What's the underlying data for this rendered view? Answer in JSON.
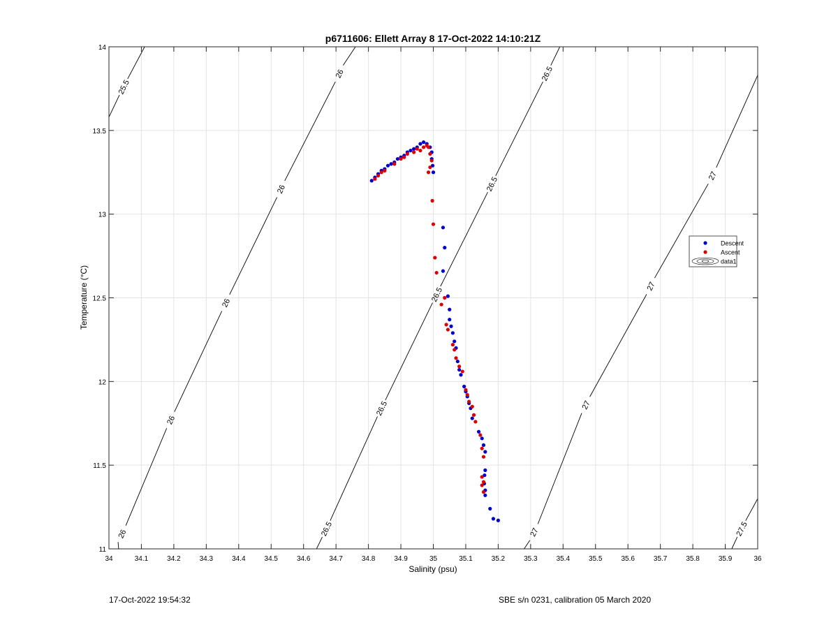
{
  "footer": {
    "left": "17-Oct-2022 19:54:32",
    "right": "SBE s/n 0231, calibration 05 March 2020"
  },
  "chart_data": {
    "type": "scatter",
    "title": "p6711606: Ellett Array 8 17-Oct-2022 14:10:21Z",
    "xlabel": "Salinity (psu)",
    "ylabel": "Temperature (°C)",
    "xlim": [
      34,
      36
    ],
    "ylim": [
      11,
      14
    ],
    "xticks": [
      34,
      34.1,
      34.2,
      34.3,
      34.4,
      34.5,
      34.6,
      34.7,
      34.8,
      34.9,
      35,
      35.1,
      35.2,
      35.3,
      35.4,
      35.5,
      35.6,
      35.7,
      35.8,
      35.9,
      36
    ],
    "xtick_labels": [
      "34",
      "34.1",
      "34.2",
      "34.3",
      "34.4",
      "34.5",
      "34.6",
      "34.7",
      "34.8",
      "34.9",
      "35",
      "35.1",
      "35.2",
      "35.3",
      "35.4",
      "35.5",
      "35.6",
      "35.7",
      "35.8",
      "35.9",
      "36"
    ],
    "yticks": [
      11,
      11.5,
      12,
      12.5,
      13,
      13.5,
      14
    ],
    "ytick_labels": [
      "11",
      "11.5",
      "12",
      "12.5",
      "13",
      "13.5",
      "14"
    ],
    "grid": true,
    "legend": {
      "location": "right",
      "entries": [
        {
          "name": "Descent",
          "color": "#0000cc",
          "marker": "dot"
        },
        {
          "name": "Ascent",
          "color": "#dd0000",
          "marker": "dot"
        },
        {
          "name": "data1",
          "color": "#000000",
          "marker": "contour"
        }
      ]
    },
    "series": [
      {
        "name": "Descent",
        "color": "#0000cc",
        "points": [
          [
            34.81,
            13.2
          ],
          [
            34.82,
            13.22
          ],
          [
            34.83,
            13.24
          ],
          [
            34.84,
            13.26
          ],
          [
            34.85,
            13.27
          ],
          [
            34.86,
            13.29
          ],
          [
            34.87,
            13.3
          ],
          [
            34.88,
            13.31
          ],
          [
            34.89,
            13.33
          ],
          [
            34.9,
            13.34
          ],
          [
            34.91,
            13.35
          ],
          [
            34.92,
            13.37
          ],
          [
            34.93,
            13.38
          ],
          [
            34.94,
            13.39
          ],
          [
            34.95,
            13.4
          ],
          [
            34.96,
            13.42
          ],
          [
            34.97,
            13.43
          ],
          [
            34.98,
            13.42
          ],
          [
            34.99,
            13.4
          ],
          [
            34.995,
            13.37
          ],
          [
            34.995,
            13.33
          ],
          [
            34.998,
            13.29
          ],
          [
            35.0,
            13.25
          ],
          [
            35.03,
            12.92
          ],
          [
            35.035,
            12.8
          ],
          [
            35.03,
            12.66
          ],
          [
            35.045,
            12.51
          ],
          [
            35.05,
            12.43
          ],
          [
            35.05,
            12.37
          ],
          [
            35.055,
            12.33
          ],
          [
            35.06,
            12.29
          ],
          [
            35.065,
            12.24
          ],
          [
            35.07,
            12.2
          ],
          [
            35.075,
            12.12
          ],
          [
            35.08,
            12.07
          ],
          [
            35.085,
            12.04
          ],
          [
            35.095,
            11.97
          ],
          [
            35.1,
            11.94
          ],
          [
            35.105,
            11.91
          ],
          [
            35.11,
            11.87
          ],
          [
            35.115,
            11.84
          ],
          [
            35.12,
            11.78
          ],
          [
            35.14,
            11.7
          ],
          [
            35.15,
            11.66
          ],
          [
            35.155,
            11.62
          ],
          [
            35.16,
            11.58
          ],
          [
            35.16,
            11.47
          ],
          [
            35.158,
            11.44
          ],
          [
            35.157,
            11.39
          ],
          [
            35.16,
            11.35
          ],
          [
            35.16,
            11.32
          ],
          [
            35.175,
            11.24
          ],
          [
            35.185,
            11.18
          ],
          [
            35.2,
            11.17
          ]
        ]
      },
      {
        "name": "Ascent",
        "color": "#dd0000",
        "points": [
          [
            34.82,
            13.21
          ],
          [
            34.83,
            13.23
          ],
          [
            34.84,
            13.25
          ],
          [
            34.85,
            13.26
          ],
          [
            34.88,
            13.3
          ],
          [
            34.9,
            13.33
          ],
          [
            34.91,
            13.34
          ],
          [
            34.92,
            13.36
          ],
          [
            34.94,
            13.37
          ],
          [
            34.95,
            13.39
          ],
          [
            34.96,
            13.38
          ],
          [
            34.97,
            13.4
          ],
          [
            34.98,
            13.41
          ],
          [
            34.985,
            13.4
          ],
          [
            34.99,
            13.36
          ],
          [
            34.995,
            13.32
          ],
          [
            34.99,
            13.28
          ],
          [
            34.985,
            13.25
          ],
          [
            34.997,
            13.08
          ],
          [
            35.0,
            12.94
          ],
          [
            35.005,
            12.74
          ],
          [
            35.01,
            12.65
          ],
          [
            35.025,
            12.46
          ],
          [
            35.035,
            12.5
          ],
          [
            35.04,
            12.34
          ],
          [
            35.045,
            12.31
          ],
          [
            35.06,
            12.22
          ],
          [
            35.065,
            12.19
          ],
          [
            35.07,
            12.14
          ],
          [
            35.08,
            12.09
          ],
          [
            35.09,
            12.06
          ],
          [
            35.1,
            11.95
          ],
          [
            35.105,
            11.92
          ],
          [
            35.11,
            11.88
          ],
          [
            35.12,
            11.85
          ],
          [
            35.125,
            11.8
          ],
          [
            35.13,
            11.76
          ],
          [
            35.145,
            11.68
          ],
          [
            35.15,
            11.6
          ],
          [
            35.155,
            11.55
          ],
          [
            35.15,
            11.43
          ],
          [
            35.155,
            11.4
          ],
          [
            35.15,
            11.38
          ],
          [
            35.155,
            11.34
          ]
        ]
      }
    ],
    "contours": [
      {
        "level": "25.5",
        "points": [
          [
            34.0,
            13.58
          ],
          [
            34.11,
            14.0
          ]
        ],
        "labels": [
          [
            34.045,
            13.76
          ]
        ]
      },
      {
        "level": "26",
        "points": [
          [
            34.03,
            11.0
          ],
          [
            34.76,
            14.0
          ]
        ],
        "labels": [
          [
            34.04,
            11.09
          ],
          [
            34.19,
            11.77
          ],
          [
            34.36,
            12.47
          ],
          [
            34.53,
            13.15
          ],
          [
            34.71,
            13.84
          ]
        ]
      },
      {
        "level": "26.5",
        "points": [
          [
            34.64,
            11.0
          ],
          [
            35.39,
            14.0
          ]
        ],
        "labels": [
          [
            34.67,
            11.12
          ],
          [
            34.84,
            11.84
          ],
          [
            35.01,
            12.52
          ],
          [
            35.18,
            13.18
          ],
          [
            35.35,
            13.84
          ]
        ]
      },
      {
        "level": "27",
        "points": [
          [
            35.28,
            11.0
          ],
          [
            36.0,
            13.83
          ]
        ],
        "labels": [
          [
            35.31,
            11.1
          ],
          [
            35.47,
            11.86
          ],
          [
            35.67,
            12.57
          ],
          [
            35.86,
            13.23
          ]
        ]
      },
      {
        "level": "27.5",
        "points": [
          [
            35.92,
            11.0
          ],
          [
            36.0,
            11.3
          ]
        ],
        "labels": [
          [
            35.95,
            11.12
          ]
        ]
      }
    ]
  }
}
